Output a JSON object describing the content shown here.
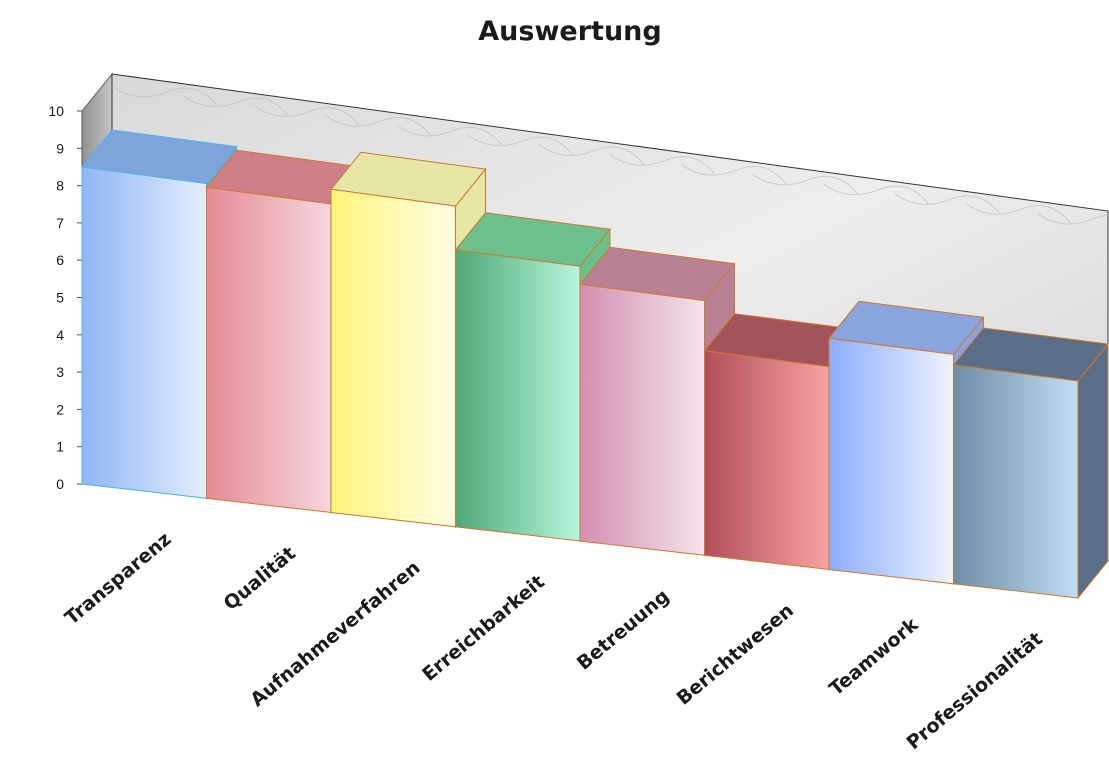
{
  "chart_data": {
    "type": "bar",
    "title": "Auswertung",
    "categories": [
      "Transparenz",
      "Qualität",
      "Aufnahmeverfahren",
      "Erreichbarkeit",
      "Betreuung",
      "Berichtwesen",
      "Teamwork",
      "Professionalität"
    ],
    "values": [
      8.5,
      8.4,
      8.8,
      7.6,
      7.1,
      5.7,
      6.5,
      6.2
    ],
    "ylim": [
      0,
      10
    ],
    "yticks": [
      "0",
      "1",
      "2",
      "3",
      "4",
      "5",
      "6",
      "7",
      "8",
      "9",
      "10"
    ],
    "grid": false,
    "legend": "none",
    "bar_colors": [
      {
        "light": "#e4eeff",
        "dark": "#8fb6f5",
        "top": "#7ea4dc",
        "stroke": "#4fb4e8"
      },
      {
        "light": "#f6d7dd",
        "dark": "#e58a96",
        "top": "#cf7f88",
        "stroke": "#cc7a2e"
      },
      {
        "light": "#fffde4",
        "dark": "#fff57a",
        "top": "#e6e6a6",
        "stroke": "#cc7a2e"
      },
      {
        "light": "#b6f5dd",
        "dark": "#4fa876",
        "top": "#6dc08c",
        "stroke": "#cc7a2e"
      },
      {
        "light": "#f4e4ec",
        "dark": "#d48fb0",
        "top": "#b88294",
        "stroke": "#cc7a2e"
      },
      {
        "light": "#f9a3a3",
        "dark": "#b04f58",
        "top": "#a3545a",
        "stroke": "#cc7a2e"
      },
      {
        "light": "#eef3ff",
        "dark": "#8caeff",
        "top": "#8aa4e0",
        "stroke": "#cc7a2e"
      },
      {
        "light": "#c2dff5",
        "dark": "#6f8ba6",
        "top": "#5b6e88",
        "stroke": "#cc7a2e"
      }
    ],
    "backdrop": "gray marble texture"
  }
}
